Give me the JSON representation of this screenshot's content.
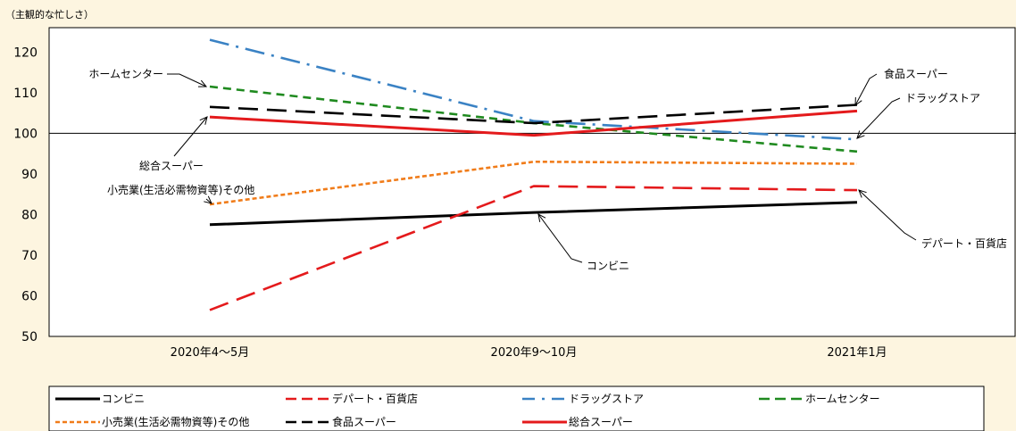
{
  "chart_data": {
    "type": "line",
    "ylabel": "（主観的な忙しさ）",
    "title": "",
    "xlabel": "",
    "categories": [
      "2020年4～5月",
      "2020年9～10月",
      "2021年1月"
    ],
    "ylim": [
      50,
      125
    ],
    "yticks": [
      50,
      60,
      70,
      80,
      90,
      100,
      110,
      120
    ],
    "reference_line": 100,
    "grid": false,
    "legend_position": "bottom",
    "series": [
      {
        "name": "コンビニ",
        "values": [
          77.5,
          80.5,
          83
        ],
        "color": "#000000",
        "dash": "solid"
      },
      {
        "name": "デパート・百貨店",
        "values": [
          56.5,
          87,
          86
        ],
        "color": "#e41a1c",
        "dash": "longdash"
      },
      {
        "name": "ドラッグストア",
        "values": [
          123,
          103,
          98.5
        ],
        "color": "#3a82c4",
        "dash": "dashdot"
      },
      {
        "name": "ホームセンター",
        "values": [
          111.5,
          102.5,
          95.5
        ],
        "color": "#1f8a1f",
        "dash": "dash"
      },
      {
        "name": "小売業(生活必需物資等)その他",
        "values": [
          82.5,
          93,
          92.5
        ],
        "color": "#f07c1a",
        "dash": "dot"
      },
      {
        "name": "食品スーパー",
        "values": [
          106.5,
          102.5,
          107
        ],
        "color": "#000000",
        "dash": "longdash"
      },
      {
        "name": "総合スーパー",
        "values": [
          104,
          99.5,
          105.5
        ],
        "color": "#e41a1c",
        "dash": "solid"
      }
    ],
    "annotations": [
      {
        "text": "ホームセンター",
        "series": 3,
        "point": 0
      },
      {
        "text": "総合スーパー",
        "series": 6,
        "point": 0
      },
      {
        "text": "小売業(生活必需物資等)その他",
        "series": 4,
        "point": 0
      },
      {
        "text": "食品スーパー",
        "series": 5,
        "point": 2
      },
      {
        "text": "ドラッグストア",
        "series": 2,
        "point": 2
      },
      {
        "text": "デパート・百貨店",
        "series": 1,
        "point": 2
      },
      {
        "text": "コンビニ",
        "series": 0,
        "point": 1
      }
    ]
  }
}
